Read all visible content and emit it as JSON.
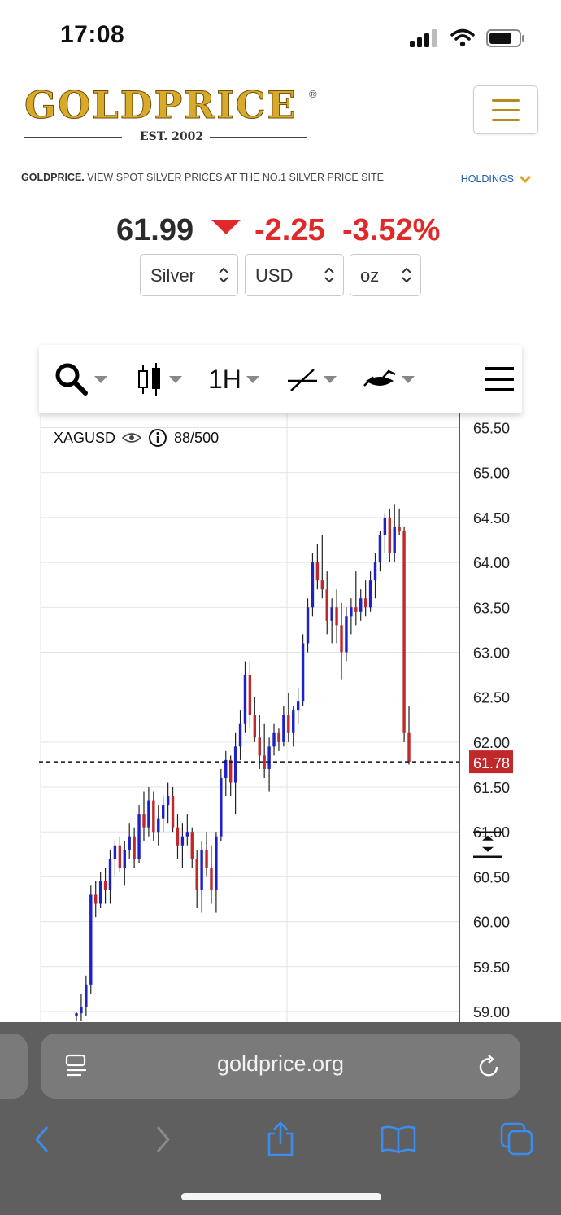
{
  "status": {
    "time": "17:08"
  },
  "header": {
    "logo_text": "GOLDPRICE",
    "logo_est": "EST. 2002",
    "menu_icon": "hamburger-icon"
  },
  "tagline": {
    "brand": "GOLDPRICE.",
    "text": " VIEW SPOT SILVER PRICES AT THE NO.1 SILVER PRICE SITE",
    "holdings_label": "HOLDINGS"
  },
  "price": {
    "value": "61.99",
    "change": "-2.25",
    "change_pct": "-3.52%",
    "direction": "down",
    "color": "#e02a2a"
  },
  "selectors": {
    "metal": "Silver",
    "currency": "USD",
    "unit": "oz"
  },
  "toolbar": {
    "interval": "1H",
    "icons": [
      "search-icon",
      "candlestick-icon",
      "drawing-line-icon",
      "indicator-icon",
      "hamburger-icon"
    ]
  },
  "chart": {
    "symbol": "XAGUSD",
    "bar_count": "88/500",
    "current_price_label": "61.78"
  },
  "chart_data": {
    "type": "candlestick",
    "symbol": "XAGUSD",
    "interval": "1H",
    "y_ticks": [
      "65.50",
      "65.00",
      "64.50",
      "64.00",
      "63.50",
      "63.00",
      "62.50",
      "62.00",
      "61.50",
      "61.00",
      "60.50",
      "60.00",
      "59.50",
      "59.00"
    ],
    "ylim": [
      58.9,
      65.55
    ],
    "current_price": 61.78,
    "up_color": "#1c22c8",
    "down_color": "#c0282a",
    "candles": [
      [
        58.95,
        59.0,
        58.9,
        58.98
      ],
      [
        58.98,
        59.2,
        58.9,
        59.05
      ],
      [
        59.05,
        59.4,
        58.95,
        59.3
      ],
      [
        59.3,
        60.4,
        59.2,
        60.3
      ],
      [
        60.3,
        60.45,
        60.05,
        60.2
      ],
      [
        60.2,
        60.55,
        60.15,
        60.45
      ],
      [
        60.45,
        60.6,
        60.2,
        60.35
      ],
      [
        60.35,
        60.8,
        60.2,
        60.7
      ],
      [
        60.7,
        60.9,
        60.5,
        60.85
      ],
      [
        60.85,
        60.95,
        60.55,
        60.6
      ],
      [
        60.6,
        60.9,
        60.4,
        60.8
      ],
      [
        60.8,
        61.1,
        60.7,
        60.95
      ],
      [
        60.95,
        61.05,
        60.6,
        60.7
      ],
      [
        60.7,
        61.3,
        60.65,
        61.2
      ],
      [
        61.2,
        61.45,
        60.9,
        61.05
      ],
      [
        61.05,
        61.5,
        60.95,
        61.35
      ],
      [
        61.35,
        61.45,
        60.9,
        61.0
      ],
      [
        61.0,
        61.3,
        60.85,
        61.15
      ],
      [
        61.15,
        61.4,
        61.0,
        61.3
      ],
      [
        61.3,
        61.55,
        61.1,
        61.4
      ],
      [
        61.4,
        61.5,
        61.0,
        61.05
      ],
      [
        61.05,
        61.2,
        60.7,
        60.85
      ],
      [
        60.85,
        61.1,
        60.6,
        60.95
      ],
      [
        60.95,
        61.2,
        60.85,
        61.0
      ],
      [
        61.0,
        61.05,
        60.6,
        60.7
      ],
      [
        60.7,
        60.8,
        60.15,
        60.35
      ],
      [
        60.35,
        60.9,
        60.1,
        60.8
      ],
      [
        60.8,
        61.0,
        60.5,
        60.6
      ],
      [
        60.6,
        60.85,
        60.2,
        60.35
      ],
      [
        60.35,
        61.0,
        60.1,
        60.95
      ],
      [
        60.95,
        61.7,
        60.9,
        61.6
      ],
      [
        61.6,
        61.9,
        61.4,
        61.8
      ],
      [
        61.8,
        61.85,
        61.4,
        61.55
      ],
      [
        61.55,
        62.1,
        61.2,
        61.95
      ],
      [
        61.95,
        62.35,
        61.8,
        62.2
      ],
      [
        62.2,
        62.9,
        62.1,
        62.75
      ],
      [
        62.75,
        62.9,
        62.15,
        62.3
      ],
      [
        62.3,
        62.5,
        62.0,
        62.05
      ],
      [
        62.05,
        62.3,
        61.7,
        61.85
      ],
      [
        61.85,
        62.2,
        61.6,
        61.7
      ],
      [
        61.7,
        62.05,
        61.45,
        61.95
      ],
      [
        61.95,
        62.2,
        61.85,
        62.1
      ],
      [
        62.1,
        62.15,
        61.9,
        62.0
      ],
      [
        62.0,
        62.4,
        61.95,
        62.3
      ],
      [
        62.3,
        62.55,
        62.0,
        62.1
      ],
      [
        62.1,
        62.4,
        61.95,
        62.35
      ],
      [
        62.35,
        62.6,
        62.2,
        62.45
      ],
      [
        62.45,
        63.2,
        62.4,
        63.1
      ],
      [
        63.1,
        63.6,
        63.0,
        63.5
      ],
      [
        63.5,
        64.1,
        63.4,
        64.0
      ],
      [
        64.0,
        64.2,
        63.7,
        63.8
      ],
      [
        63.8,
        64.3,
        63.6,
        63.7
      ],
      [
        63.7,
        63.9,
        63.2,
        63.35
      ],
      [
        63.35,
        63.6,
        63.1,
        63.5
      ],
      [
        63.5,
        63.7,
        63.1,
        63.3
      ],
      [
        63.3,
        63.55,
        62.7,
        63.0
      ],
      [
        63.0,
        63.5,
        62.9,
        63.4
      ],
      [
        63.4,
        63.6,
        63.2,
        63.5
      ],
      [
        63.5,
        63.9,
        63.3,
        63.45
      ],
      [
        63.45,
        63.7,
        63.35,
        63.6
      ],
      [
        63.6,
        63.8,
        63.4,
        63.5
      ],
      [
        63.5,
        63.9,
        63.45,
        63.8
      ],
      [
        63.8,
        64.1,
        63.6,
        64.0
      ],
      [
        64.0,
        64.35,
        63.9,
        64.3
      ],
      [
        64.3,
        64.55,
        64.1,
        64.5
      ],
      [
        64.5,
        64.6,
        64.0,
        64.1
      ],
      [
        64.1,
        64.65,
        64.0,
        64.4
      ],
      [
        64.4,
        64.6,
        64.3,
        64.35
      ],
      [
        64.35,
        64.4,
        62.0,
        62.1
      ],
      [
        62.1,
        62.4,
        61.75,
        61.78
      ]
    ]
  }
}
